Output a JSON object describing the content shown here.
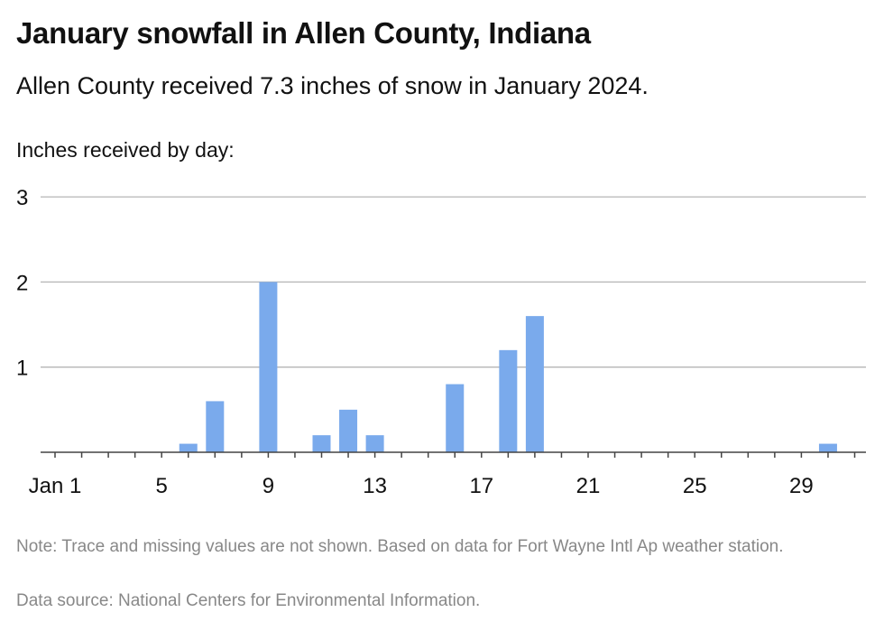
{
  "title": "January snowfall in Allen County, Indiana",
  "subtitle": "Allen County received 7.3 inches of snow in January 2024.",
  "ylabel": "Inches received by day:",
  "note": "Note: Trace and missing values are not shown. Based on data for Fort Wayne Intl Ap weather station.",
  "source": "Data source: National Centers for Environmental Information.",
  "colors": {
    "bar": "#7aaaec",
    "grid": "#b5b5b5",
    "baseline": "#444444",
    "text": "#111111",
    "muted": "#888888"
  },
  "chart_data": {
    "type": "bar",
    "title": "January snowfall in Allen County, Indiana",
    "xlabel": "",
    "ylabel": "Inches received by day:",
    "x": [
      1,
      2,
      3,
      4,
      5,
      6,
      7,
      8,
      9,
      10,
      11,
      12,
      13,
      14,
      15,
      16,
      17,
      18,
      19,
      20,
      21,
      22,
      23,
      24,
      25,
      26,
      27,
      28,
      29,
      30,
      31
    ],
    "values": [
      0,
      0,
      0,
      0,
      0,
      0.1,
      0.6,
      0,
      2.0,
      0,
      0.2,
      0.5,
      0.2,
      0,
      0,
      0.8,
      0,
      1.2,
      1.6,
      0,
      0,
      0,
      0,
      0,
      0,
      0,
      0,
      0,
      0,
      0.1,
      0
    ],
    "ylim": [
      0,
      3
    ],
    "yticks": [
      1,
      2,
      3
    ],
    "xticks": [
      1,
      5,
      9,
      13,
      17,
      21,
      25,
      29
    ],
    "xtick_labels": [
      "Jan 1",
      "5",
      "9",
      "13",
      "17",
      "21",
      "25",
      "29"
    ],
    "grid": true,
    "legend": "none"
  }
}
